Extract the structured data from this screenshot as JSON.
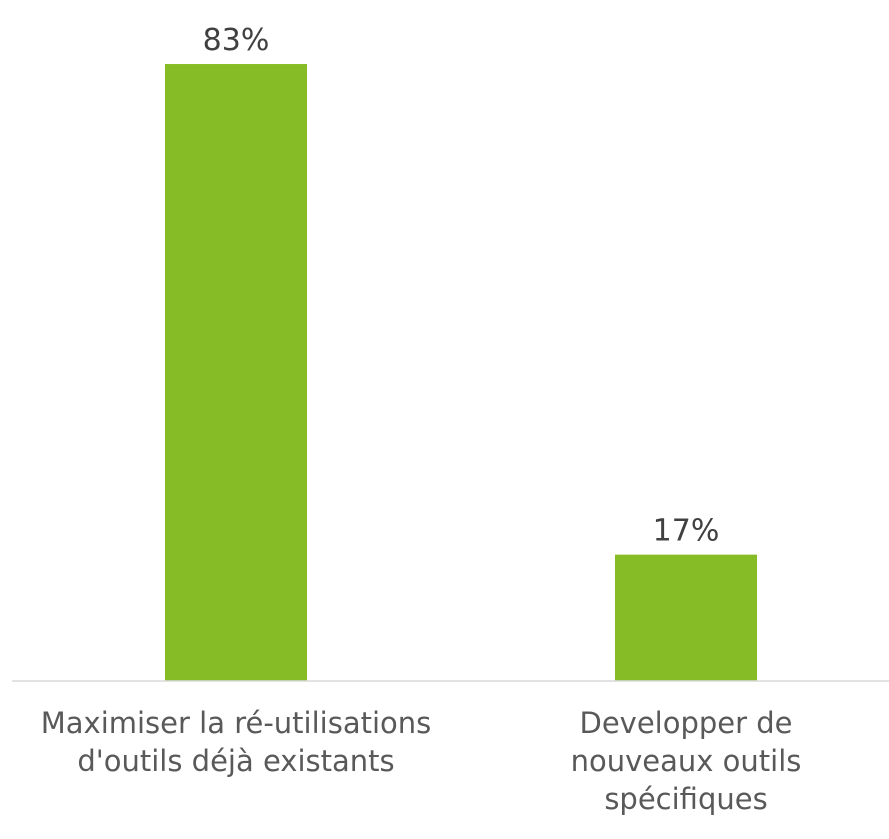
{
  "chart_data": {
    "type": "bar",
    "categories": [
      "Maximiser la ré-utilisations d'outils déjà existants",
      "Developper de nouveaux outils spécifiques"
    ],
    "values": [
      83,
      17
    ],
    "value_labels": [
      "83%",
      "17%"
    ],
    "color": "#86bc25",
    "ylim": [
      0,
      90
    ],
    "grid": false
  }
}
